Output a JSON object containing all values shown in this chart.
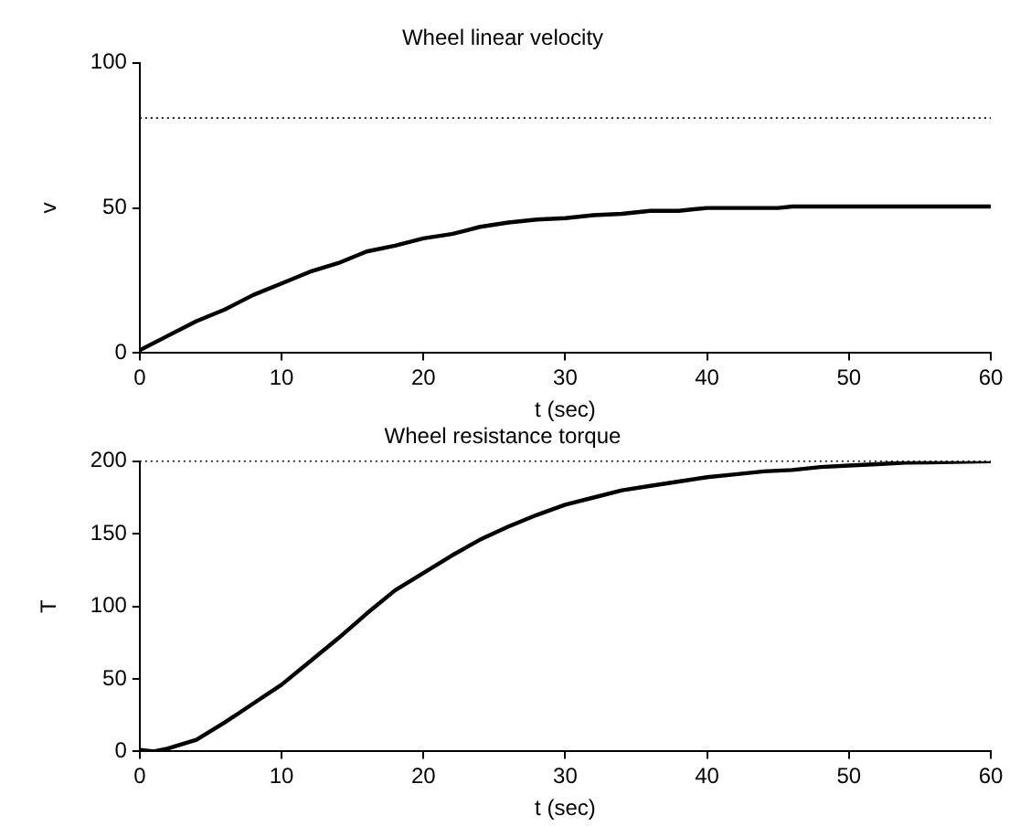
{
  "chart_data": [
    {
      "type": "line",
      "title": "Wheel linear velocity",
      "xlabel": "t (sec)",
      "ylabel": "v",
      "x": [
        0,
        2,
        4,
        6,
        8,
        10,
        12,
        14,
        16,
        18,
        20,
        22,
        24,
        26,
        28,
        30,
        32,
        34,
        36,
        38,
        40,
        45,
        46,
        50,
        55,
        60
      ],
      "series": [
        {
          "color": "#000000",
          "values": [
            1,
            6,
            11,
            15,
            20,
            24,
            28,
            31,
            35,
            37,
            39.5,
            41,
            43.5,
            45,
            46,
            46.5,
            47.5,
            48,
            49,
            49,
            50,
            50,
            50.5,
            50.5,
            50.5,
            50.5
          ]
        }
      ],
      "xlim": [
        0,
        60
      ],
      "xticks": [
        0,
        10,
        20,
        30,
        40,
        50,
        60
      ],
      "ylim": [
        0,
        100
      ],
      "yticks": [
        0,
        50,
        100
      ],
      "grid": false,
      "legend": false,
      "marker": "none",
      "line_style": "solid",
      "ref_lines": [
        {
          "axis": "y",
          "value": 81,
          "color": "#000000",
          "line_style": "dotted"
        }
      ]
    },
    {
      "type": "line",
      "title": "Wheel resistance torque",
      "xlabel": "t (sec)",
      "ylabel": "T",
      "x": [
        0,
        1,
        2,
        4,
        6,
        8,
        10,
        12,
        14,
        16,
        18,
        20,
        22,
        24,
        26,
        28,
        30,
        32,
        34,
        36,
        38,
        40,
        42,
        44,
        46,
        48,
        50,
        52,
        54,
        60
      ],
      "series": [
        {
          "color": "#000000",
          "values": [
            1,
            0,
            2,
            8,
            20,
            33,
            46,
            62,
            78,
            95,
            111,
            123,
            135,
            146,
            155,
            163,
            170,
            175,
            180,
            183,
            186,
            189,
            191,
            193,
            194,
            196,
            197,
            198,
            199,
            200
          ]
        }
      ],
      "xlim": [
        0,
        60
      ],
      "xticks": [
        0,
        10,
        20,
        30,
        40,
        50,
        60
      ],
      "ylim": [
        0,
        200
      ],
      "yticks": [
        0,
        50,
        100,
        150,
        200
      ],
      "grid": false,
      "legend": false,
      "marker": "none",
      "line_style": "solid",
      "ref_lines": [
        {
          "axis": "y",
          "value": 200,
          "color": "#000000",
          "line_style": "dotted"
        }
      ]
    }
  ]
}
